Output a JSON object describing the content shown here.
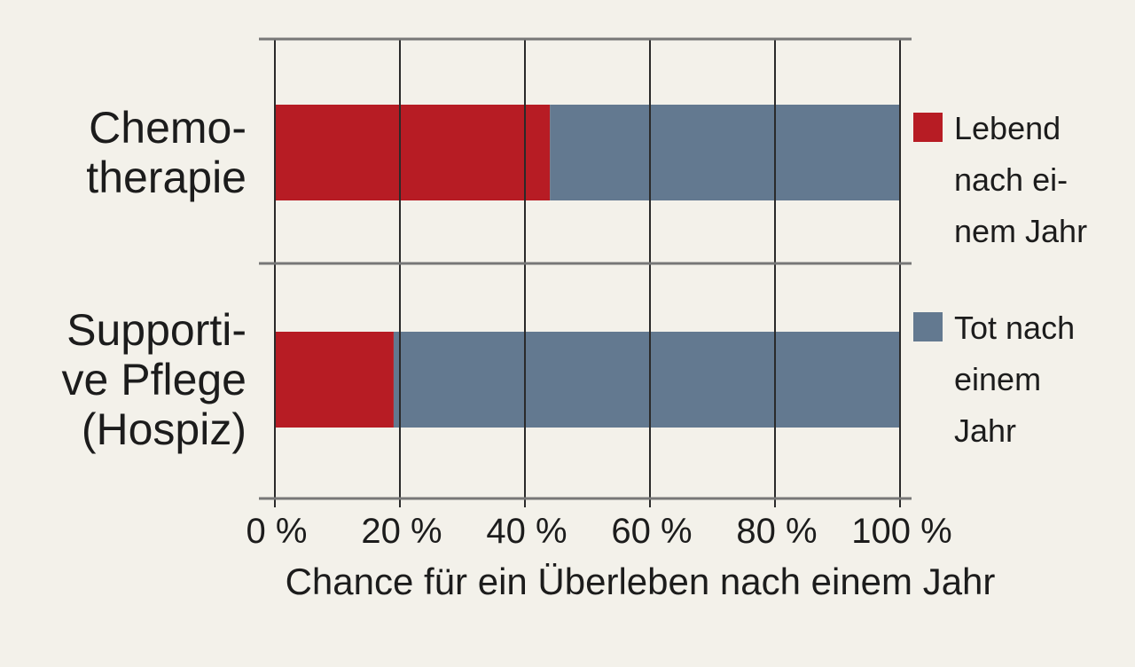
{
  "chart_data": {
    "type": "bar",
    "orientation": "horizontal",
    "stacked": true,
    "categories": [
      [
        "Chemo-",
        "therapie"
      ],
      [
        "Supporti-",
        "ve Pflege",
        "(Hospiz)"
      ]
    ],
    "series": [
      {
        "name": [
          "Lebend",
          "nach ei-",
          "nem Jahr"
        ],
        "color": "#b71c24",
        "values": [
          44,
          19
        ]
      },
      {
        "name": [
          "Tot nach",
          "einem",
          "Jahr"
        ],
        "color": "#637990",
        "values": [
          56,
          81
        ]
      }
    ],
    "xlabel": "Chance für ein Überleben nach einem Jahr",
    "xlim": [
      0,
      100
    ],
    "xticks": [
      0,
      20,
      40,
      60,
      80,
      100
    ],
    "xtick_labels": [
      "0 %",
      "20 %",
      "40 %",
      "60 %",
      "80 %",
      "100 %"
    ],
    "grid": true,
    "legend_position": "right"
  }
}
